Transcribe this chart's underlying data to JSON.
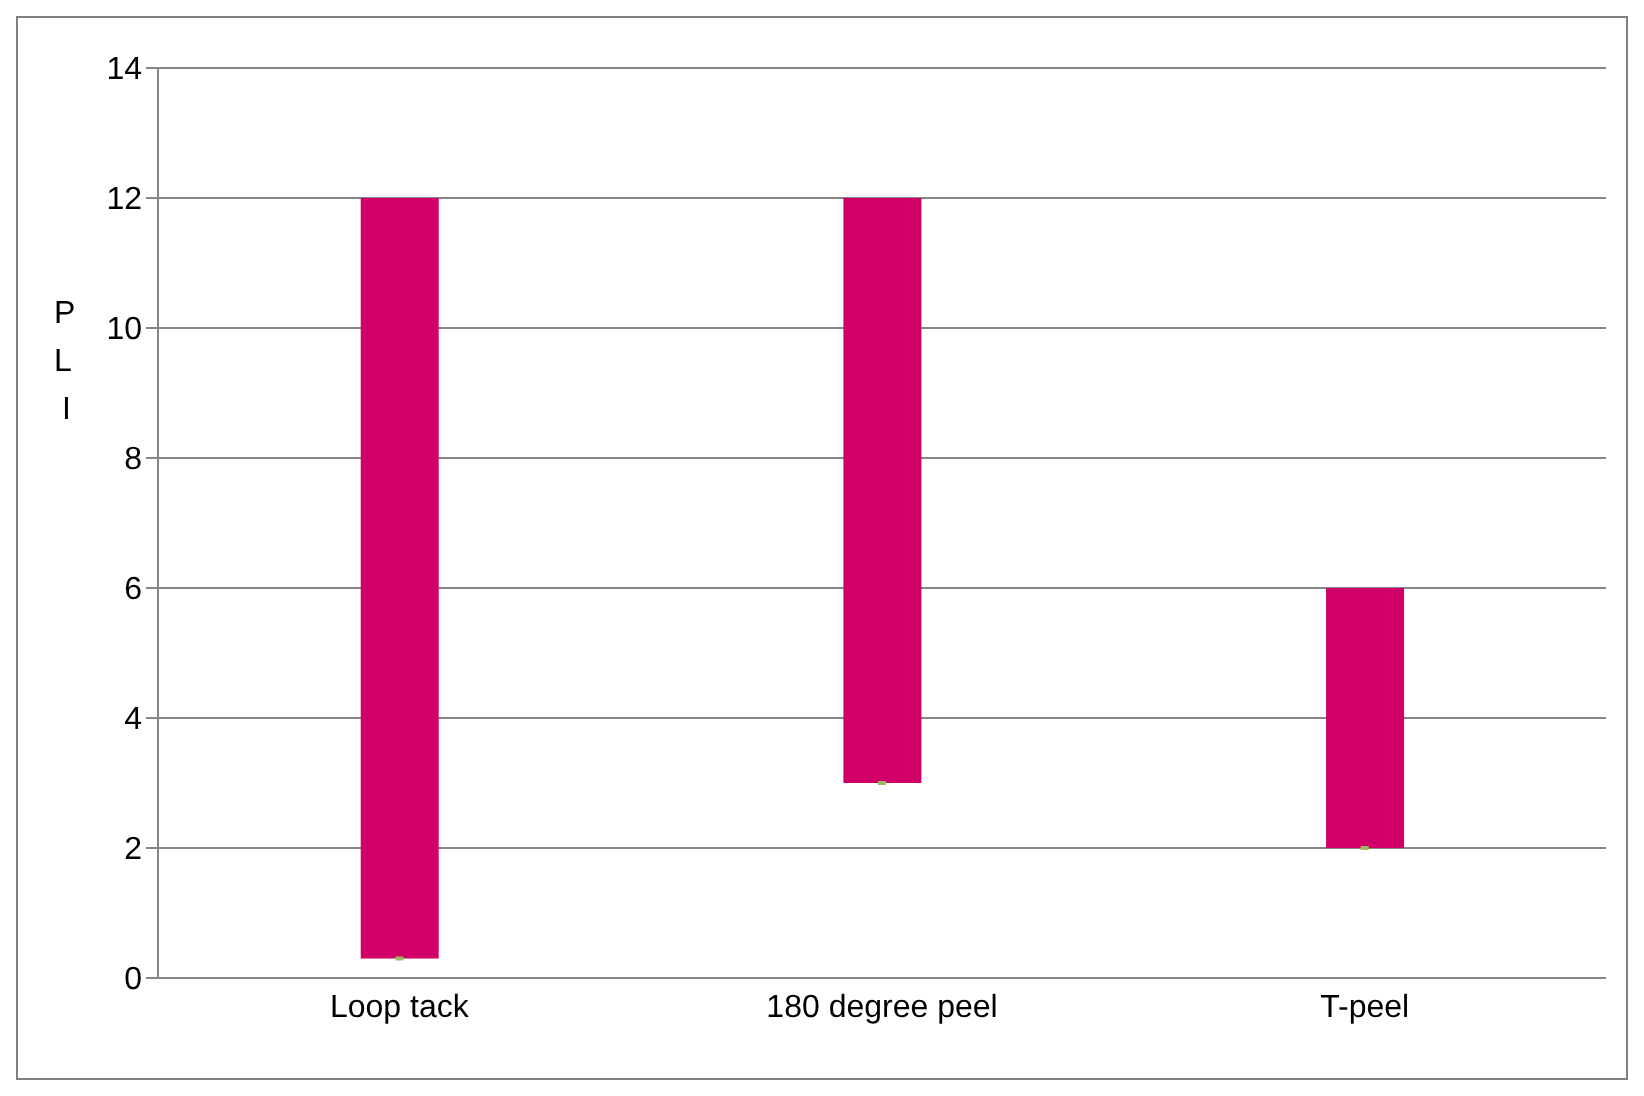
{
  "chart_data": {
    "type": "bar",
    "ylabel": "PLI",
    "categories": [
      "Loop tack",
      "180 degree peel",
      "T-peel"
    ],
    "series": [
      {
        "color": "#d10068",
        "base": [
          0.3,
          3,
          2
        ],
        "values": [
          11.7,
          9,
          4
        ]
      },
      {
        "type": "scatter",
        "color": "#9bbb59",
        "marker": "square",
        "values": [
          0.3,
          3,
          2
        ]
      }
    ],
    "ylim": [
      0,
      14
    ],
    "yticks": [
      0,
      2,
      4,
      6,
      8,
      10,
      12,
      14
    ],
    "grid": "y",
    "legend": false
  }
}
